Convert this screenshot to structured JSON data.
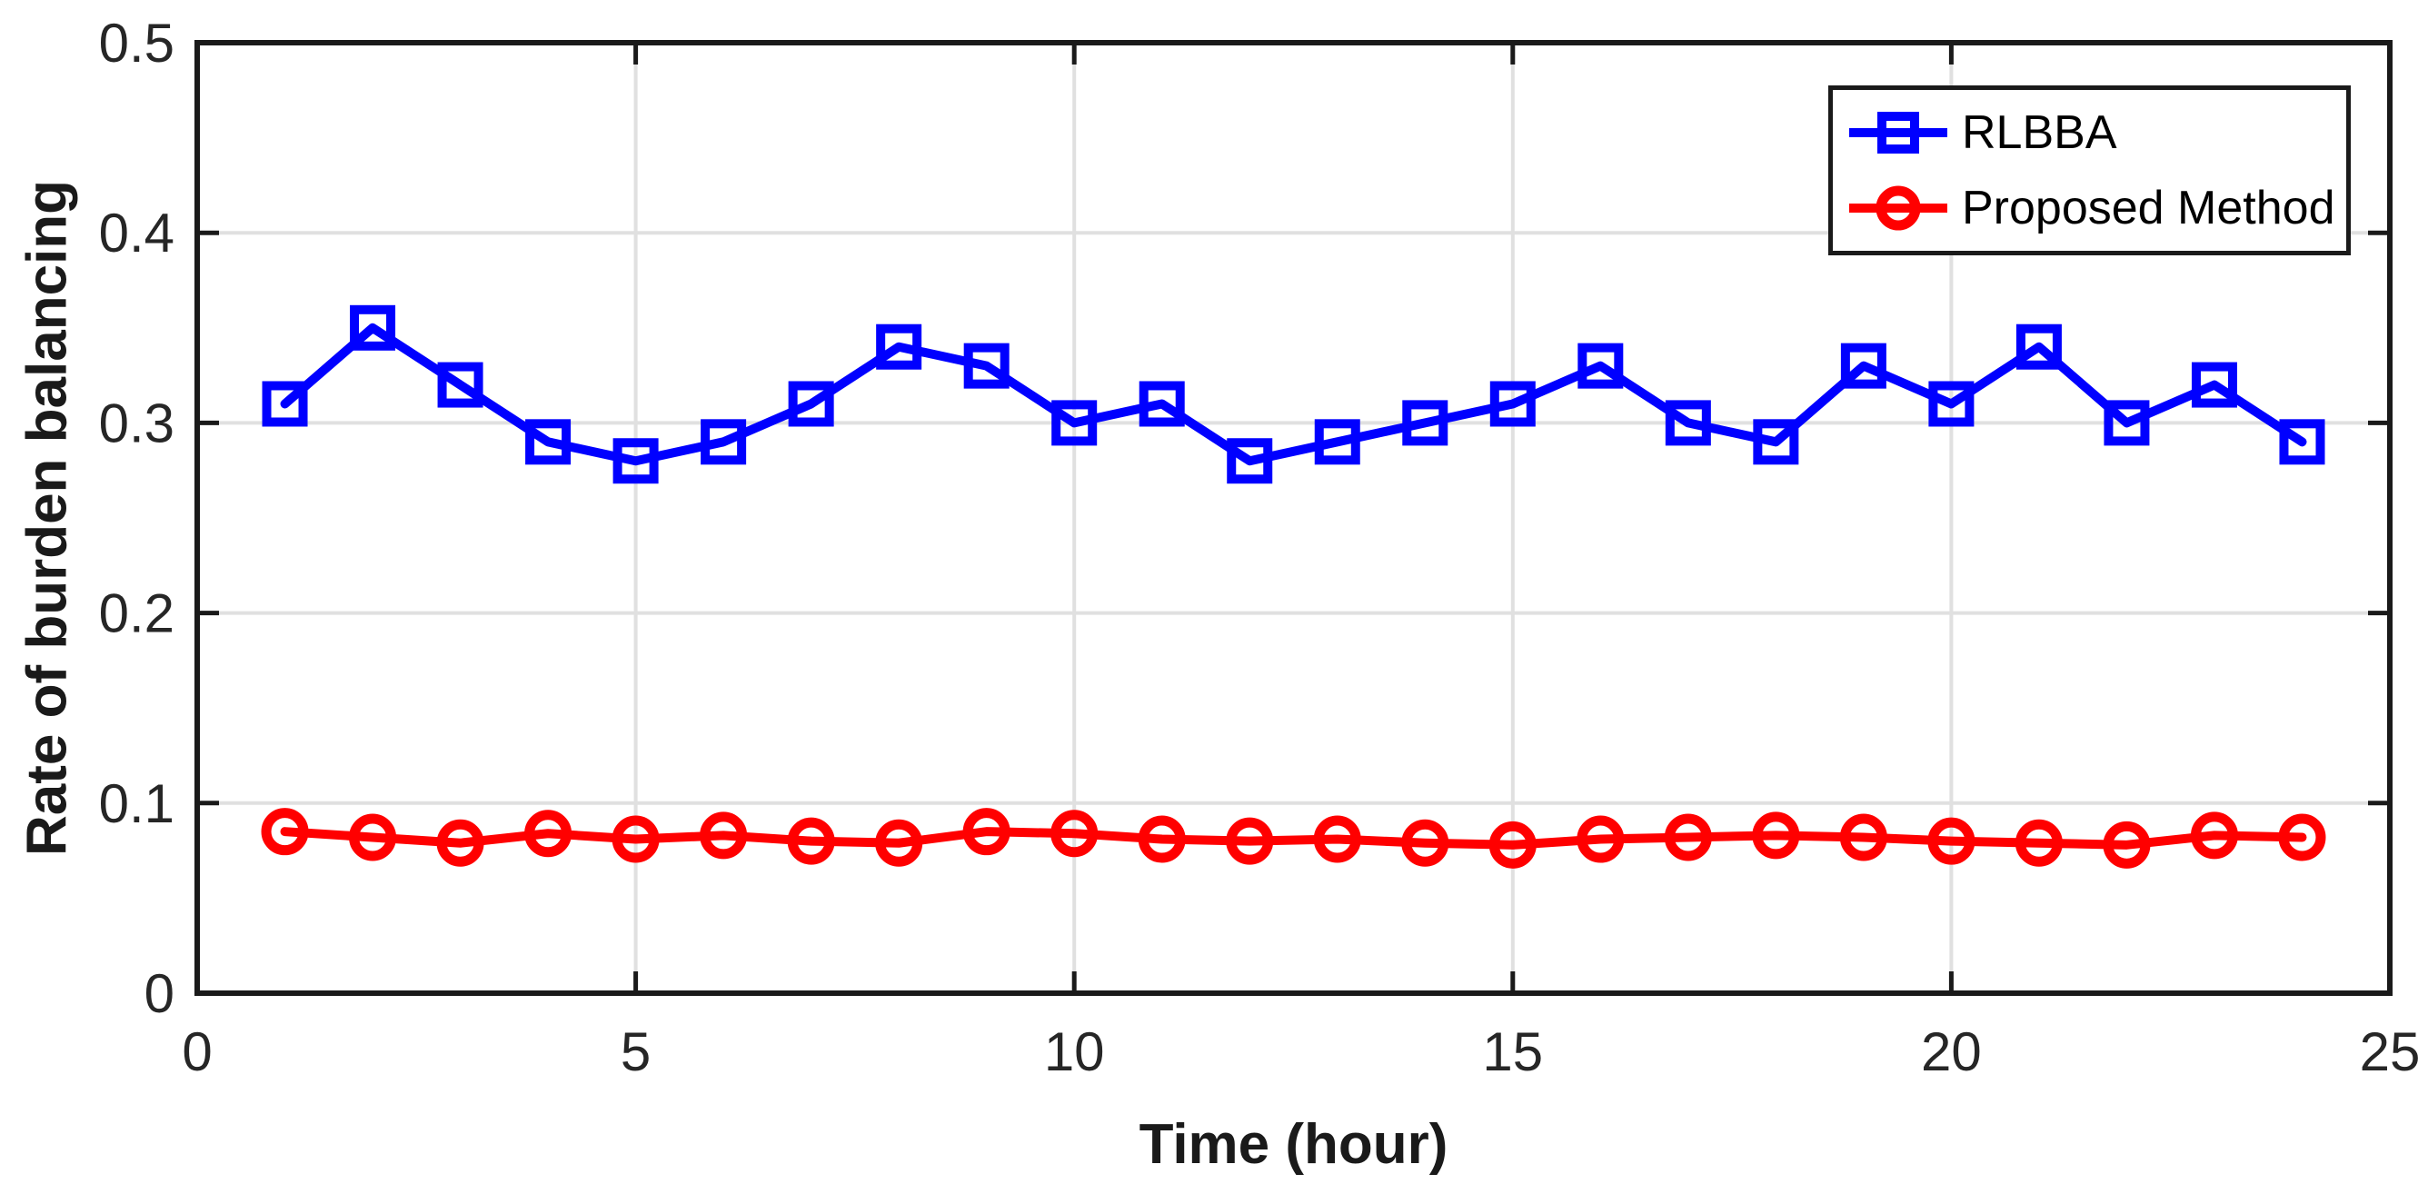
{
  "chart_data": {
    "type": "line",
    "title": "",
    "xlabel": "Time (hour)",
    "ylabel": "Rate of burden balancing",
    "xlim": [
      0,
      25
    ],
    "ylim": [
      0,
      0.5
    ],
    "xticks": [
      0,
      5,
      10,
      15,
      20,
      25
    ],
    "yticks": [
      0,
      0.1,
      0.2,
      0.3,
      0.4,
      0.5
    ],
    "grid": true,
    "legend_position": "top-right",
    "x": [
      1,
      2,
      3,
      4,
      5,
      6,
      7,
      8,
      9,
      10,
      11,
      12,
      13,
      14,
      15,
      16,
      17,
      18,
      19,
      20,
      21,
      22,
      23,
      24
    ],
    "series": [
      {
        "name": "RLBBA",
        "color": "#0000FF",
        "marker": "square",
        "values": [
          0.31,
          0.35,
          0.32,
          0.29,
          0.28,
          0.29,
          0.31,
          0.34,
          0.33,
          0.3,
          0.31,
          0.28,
          0.29,
          0.3,
          0.31,
          0.33,
          0.3,
          0.29,
          0.33,
          0.31,
          0.34,
          0.3,
          0.32,
          0.29
        ]
      },
      {
        "name": "Proposed Method",
        "color": "#FF0000",
        "marker": "circle",
        "values": [
          0.085,
          0.082,
          0.079,
          0.084,
          0.081,
          0.083,
          0.08,
          0.079,
          0.085,
          0.084,
          0.081,
          0.08,
          0.081,
          0.079,
          0.078,
          0.081,
          0.082,
          0.083,
          0.082,
          0.08,
          0.079,
          0.078,
          0.083,
          0.082
        ]
      }
    ],
    "colors": {
      "grid": "#E0E0E0",
      "spine": "#1a1a1a",
      "tick_label": "#262626",
      "background": "#ffffff"
    }
  }
}
